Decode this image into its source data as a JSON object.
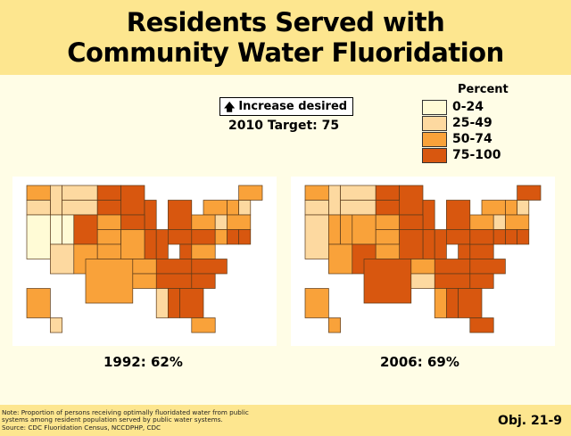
{
  "header": {
    "title_line1": "Residents Served with",
    "title_line2": "Community Water Fluoridation"
  },
  "target": {
    "arrow_icon": "arrow-up-icon",
    "increase_label": "Increase desired",
    "target_label": "2010 Target: 75"
  },
  "legend": {
    "title": "Percent",
    "items": [
      {
        "label": "0-24",
        "color": "#fffbd6"
      },
      {
        "label": "25-49",
        "color": "#fdd9a0"
      },
      {
        "label": "50-74",
        "color": "#f9a23a"
      },
      {
        "label": "75-100",
        "color": "#d8570f"
      }
    ]
  },
  "maps": [
    {
      "caption": "1992: 62%"
    },
    {
      "caption": "2006: 69%"
    }
  ],
  "footer": {
    "note_line1": "Note: Proportion of persons receiving optimally fluoridated water from public",
    "note_line2": "systems among resident population served by public water systems.",
    "note_line3": "Source: CDC Fluoridation Census, NCCDPHP, CDC",
    "objective": "Obj. 21-9"
  },
  "chart_data": {
    "type": "choropleth",
    "title": "Residents Served with Community Water Fluoridation",
    "legend_title": "Percent",
    "categories": [
      "0-24",
      "25-49",
      "50-74",
      "75-100"
    ],
    "colors": [
      "#fffbd6",
      "#fdd9a0",
      "#f9a23a",
      "#d8570f"
    ],
    "target": {
      "year": 2010,
      "value": 75,
      "direction": "Increase desired"
    },
    "state_grid": {
      "WA": [
        0,
        0,
        2,
        1
      ],
      "ID": [
        2,
        0,
        1,
        2
      ],
      "MT": [
        3,
        0,
        3,
        1
      ],
      "ND": [
        6,
        0,
        2,
        1
      ],
      "MN": [
        8,
        0,
        2,
        2
      ],
      "WI": [
        10,
        1,
        1,
        2
      ],
      "MI": [
        12,
        1,
        2,
        2
      ],
      "VT": [
        17,
        1,
        1,
        1
      ],
      "NH": [
        18,
        1,
        1,
        1
      ],
      "ME": [
        18,
        0,
        2,
        1
      ],
      "OR": [
        0,
        1,
        2,
        1
      ],
      "WY": [
        3,
        1,
        3,
        1
      ],
      "SD": [
        6,
        1,
        2,
        1
      ],
      "NY": [
        15,
        1,
        2,
        1
      ],
      "MA": [
        17,
        2,
        2,
        1
      ],
      "CA": [
        0,
        2,
        2,
        3
      ],
      "NV": [
        2,
        2,
        1,
        2
      ],
      "UT": [
        3,
        2,
        1,
        2
      ],
      "CO": [
        4,
        2,
        2,
        2
      ],
      "NE": [
        6,
        2,
        2,
        1
      ],
      "IA": [
        8,
        2,
        2,
        1
      ],
      "IL": [
        10,
        3,
        1,
        2
      ],
      "IN": [
        11,
        3,
        1,
        2
      ],
      "OH": [
        12,
        3,
        2,
        1
      ],
      "PA": [
        14,
        2,
        2,
        1
      ],
      "NJ": [
        16,
        2,
        1,
        1
      ],
      "CT": [
        17,
        3,
        1,
        1
      ],
      "RI": [
        18,
        3,
        1,
        1
      ],
      "KS": [
        6,
        3,
        2,
        1
      ],
      "MO": [
        8,
        3,
        2,
        2
      ],
      "WV": [
        13,
        4,
        1,
        1
      ],
      "VA": [
        14,
        4,
        2,
        1
      ],
      "MD": [
        14,
        3,
        2,
        1
      ],
      "DE": [
        16,
        3,
        1,
        1
      ],
      "AZ": [
        2,
        4,
        2,
        2
      ],
      "NM": [
        4,
        4,
        2,
        2
      ],
      "OK": [
        6,
        4,
        2,
        1
      ],
      "KY": [
        11,
        5,
        3,
        1
      ],
      "NC": [
        14,
        5,
        3,
        1
      ],
      "TX": [
        5,
        5,
        4,
        3
      ],
      "AR": [
        9,
        5,
        2,
        1
      ],
      "TN": [
        11,
        6,
        3,
        1
      ],
      "SC": [
        14,
        6,
        2,
        1
      ],
      "LA": [
        9,
        6,
        2,
        1
      ],
      "MS": [
        11,
        7,
        1,
        2
      ],
      "AL": [
        12,
        7,
        1,
        2
      ],
      "GA": [
        13,
        7,
        2,
        2
      ],
      "FL": [
        14,
        9,
        2,
        1
      ],
      "AK": [
        0,
        7,
        2,
        2
      ],
      "HI": [
        2,
        9,
        1,
        1
      ]
    },
    "series": [
      {
        "name": "1992",
        "overall_percent": 62,
        "values": {
          "WA": 2,
          "OR": 1,
          "CA": 0,
          "NV": 0,
          "ID": 1,
          "MT": 1,
          "WY": 1,
          "UT": 0,
          "AZ": 1,
          "CO": 3,
          "NM": 2,
          "ND": 3,
          "SD": 3,
          "NE": 2,
          "KS": 2,
          "OK": 2,
          "TX": 2,
          "MN": 3,
          "IA": 3,
          "MO": 2,
          "AR": 2,
          "LA": 2,
          "WI": 3,
          "IL": 3,
          "MI": 3,
          "IN": 3,
          "OH": 3,
          "KY": 3,
          "TN": 3,
          "MS": 1,
          "AL": 3,
          "GA": 3,
          "FL": 2,
          "SC": 3,
          "NC": 3,
          "VA": 2,
          "WV": 3,
          "PA": 2,
          "NY": 2,
          "NJ": 1,
          "DE": 2,
          "MD": 3,
          "CT": 3,
          "RI": 3,
          "MA": 2,
          "VT": 2,
          "NH": 1,
          "ME": 2,
          "AK": 2,
          "HI": 1
        }
      },
      {
        "name": "2006",
        "overall_percent": 69,
        "values": {
          "WA": 2,
          "OR": 1,
          "CA": 1,
          "NV": 2,
          "ID": 1,
          "MT": 1,
          "WY": 1,
          "UT": 2,
          "AZ": 2,
          "CO": 2,
          "NM": 3,
          "ND": 3,
          "SD": 3,
          "NE": 2,
          "KS": 2,
          "OK": 2,
          "TX": 3,
          "MN": 3,
          "IA": 3,
          "MO": 3,
          "AR": 2,
          "LA": 1,
          "WI": 3,
          "IL": 3,
          "MI": 3,
          "IN": 3,
          "OH": 3,
          "KY": 3,
          "TN": 3,
          "MS": 2,
          "AL": 3,
          "GA": 3,
          "FL": 3,
          "SC": 3,
          "NC": 3,
          "VA": 3,
          "WV": 3,
          "PA": 2,
          "NY": 2,
          "NJ": 1,
          "DE": 3,
          "MD": 3,
          "CT": 3,
          "RI": 3,
          "MA": 2,
          "VT": 2,
          "NH": 1,
          "ME": 3,
          "AK": 2,
          "HI": 2
        }
      }
    ]
  }
}
